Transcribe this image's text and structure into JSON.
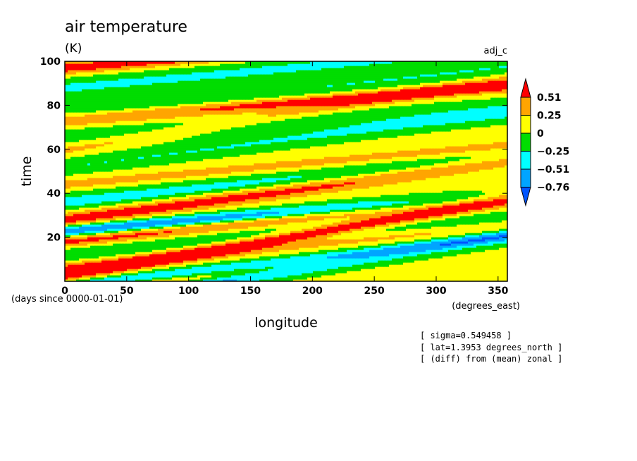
{
  "chart_data": {
    "type": "heatmap",
    "title": "air temperature",
    "units": "(K)",
    "dataset_label": "adj_c",
    "xlabel": "longitude",
    "ylabel": "time",
    "x_unit_label": "(degrees_east)",
    "y_unit_label": "(days since 0000-01-01)",
    "xlim": [
      0,
      357.5
    ],
    "ylim": [
      0,
      100
    ],
    "x_ticks": [
      0,
      50,
      100,
      150,
      200,
      250,
      300,
      350
    ],
    "y_ticks": [
      20,
      40,
      60,
      80,
      100
    ],
    "contour_levels": [
      -0.76,
      -0.51,
      -0.25,
      0,
      0.25,
      0.51
    ],
    "colorbar_labels": [
      "0.51",
      "0.25",
      "0",
      "−0.25",
      "−0.51",
      "−0.76"
    ],
    "colors": [
      "#0055ff",
      "#00a5ff",
      "#00ffff",
      "#00dd00",
      "#ffff00",
      "#ffa500",
      "#ff0000"
    ],
    "bands": [
      {
        "t0": 97,
        "slope": 0.045,
        "value": 0.62,
        "width": 2.0
      },
      {
        "t0": 88,
        "slope": 0.05,
        "value": -0.35,
        "width": 3.0
      },
      {
        "t0": 76,
        "slope": 0.06,
        "value": -0.3,
        "width": 2.5
      },
      {
        "t0": 66,
        "slope": 0.035,
        "value": -0.2,
        "width": 3.5
      },
      {
        "t0": 72,
        "slope": 0.045,
        "value": 0.35,
        "width": 1.8
      },
      {
        "t0": 52,
        "slope": 0.07,
        "value": -0.3,
        "width": 2.5
      },
      {
        "t0": 44,
        "slope": 0.05,
        "value": 0.3,
        "width": 2.0
      },
      {
        "t0": 36,
        "slope": 0.055,
        "value": -0.4,
        "width": 3.0
      },
      {
        "t0": 28,
        "slope": 0.075,
        "value": 0.65,
        "width": 2.5
      },
      {
        "t0": 23,
        "slope": 0.045,
        "value": -0.8,
        "width": 2.0
      },
      {
        "t0": 18,
        "slope": 0.06,
        "value": 0.6,
        "width": 2.0
      },
      {
        "t0": 12,
        "slope": 0.05,
        "value": -0.3,
        "width": 3.0
      },
      {
        "t0": 6,
        "slope": 0.055,
        "value": 0.3,
        "width": 2.0
      },
      {
        "t0": -6,
        "slope": 0.07,
        "value": 0.62,
        "width": 1.8
      },
      {
        "t0": -2,
        "slope": 0.06,
        "value": -0.55,
        "width": 2.0
      },
      {
        "t0": 2,
        "slope": 0.1,
        "value": 0.6,
        "width": 2.0
      },
      {
        "t0": -10,
        "slope": 0.085,
        "value": -0.8,
        "width": 2.2
      },
      {
        "t0": 6,
        "slope": 0.08,
        "value": 0.3,
        "width": 2.0
      },
      {
        "t0": 60,
        "slope": 0.09,
        "value": 0.3,
        "width": 2.0
      },
      {
        "t0": 75,
        "slope": 0.04,
        "value": 0.35,
        "width": 1.6
      }
    ],
    "annotations": [
      "[ sigma=0.549458 ]",
      "[ lat=1.3953 degrees_north ]",
      "[ (diff) from (mean) zonal ]"
    ]
  }
}
